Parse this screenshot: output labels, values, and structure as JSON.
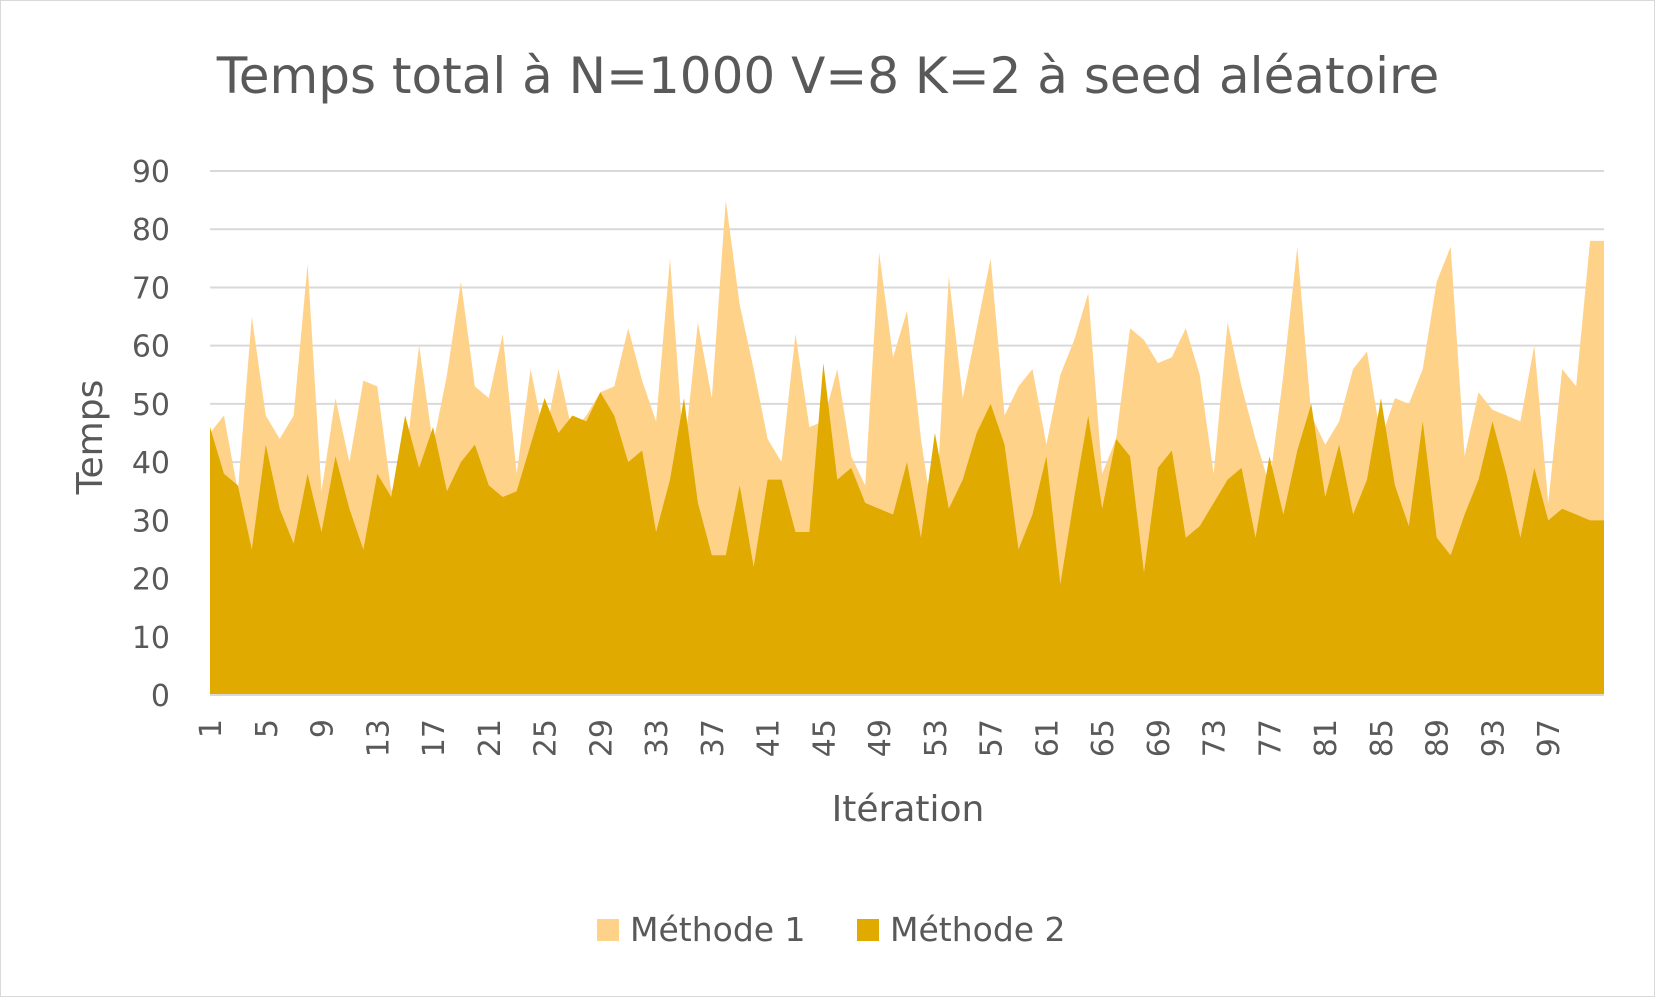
{
  "chart_data": {
    "type": "area",
    "title": "Temps total à N=1000 V=8 K=2 à seed aléatoire",
    "xlabel": "Itération",
    "ylabel": "Temps",
    "ylim": [
      0,
      90
    ],
    "y_ticks": [
      "0",
      "10",
      "20",
      "30",
      "40",
      "50",
      "60",
      "70",
      "80",
      "90"
    ],
    "x_tick_labels": [
      "1",
      "5",
      "9",
      "13",
      "17",
      "21",
      "25",
      "29",
      "33",
      "37",
      "41",
      "45",
      "49",
      "53",
      "57",
      "61",
      "65",
      "69",
      "73",
      "77",
      "81",
      "85",
      "89",
      "93",
      "97"
    ],
    "x": [
      1,
      2,
      3,
      4,
      5,
      6,
      7,
      8,
      9,
      10,
      11,
      12,
      13,
      14,
      15,
      16,
      17,
      18,
      19,
      20,
      21,
      22,
      23,
      24,
      25,
      26,
      27,
      28,
      29,
      30,
      31,
      32,
      33,
      34,
      35,
      36,
      37,
      38,
      39,
      40,
      41,
      42,
      43,
      44,
      45,
      46,
      47,
      48,
      49,
      50,
      51,
      52,
      53,
      54,
      55,
      56,
      57,
      58,
      59,
      60,
      61,
      62,
      63,
      64,
      65,
      66,
      67,
      68,
      69,
      70,
      71,
      72,
      73,
      74,
      75,
      76,
      77,
      78,
      79,
      80,
      81,
      82,
      83,
      84,
      85,
      86,
      87,
      88,
      89,
      90,
      91,
      92,
      93,
      94,
      95,
      96,
      97,
      98,
      99,
      100,
      101
    ],
    "grid": true,
    "legend_position": "bottom",
    "series": [
      {
        "name": "Méthode 1",
        "color": "#ffd28a",
        "values": [
          45,
          48,
          35,
          65,
          48,
          44,
          48,
          74,
          35,
          51,
          40,
          54,
          53,
          35,
          40,
          60,
          43,
          55,
          71,
          53,
          51,
          62,
          38,
          56,
          44,
          56,
          45,
          48,
          52,
          53,
          63,
          54,
          47,
          75,
          41,
          64,
          51,
          85,
          67,
          56,
          44,
          40,
          62,
          46,
          47,
          56,
          41,
          36,
          76,
          58,
          66,
          44,
          28,
          72,
          51,
          63,
          75,
          48,
          53,
          56,
          43,
          55,
          61,
          69,
          38,
          44,
          63,
          61,
          57,
          58,
          63,
          55,
          38,
          64,
          53,
          44,
          36,
          55,
          77,
          48,
          43,
          47,
          56,
          59,
          44,
          51,
          50,
          56,
          71,
          77,
          41,
          52,
          49,
          48,
          47,
          60,
          33,
          56,
          53,
          78,
          78
        ]
      },
      {
        "name": "Méthode 2",
        "color": "#e0aa00",
        "values": [
          46,
          38,
          36,
          25,
          43,
          32,
          26,
          38,
          28,
          41,
          32,
          25,
          38,
          34,
          48,
          39,
          46,
          35,
          40,
          43,
          36,
          34,
          35,
          43,
          51,
          45,
          48,
          47,
          52,
          48,
          40,
          42,
          28,
          37,
          51,
          33,
          24,
          24,
          36,
          22,
          37,
          37,
          28,
          28,
          57,
          37,
          39,
          33,
          32,
          31,
          40,
          27,
          45,
          32,
          37,
          45,
          50,
          43,
          25,
          31,
          41,
          19,
          34,
          48,
          32,
          44,
          41,
          21,
          39,
          42,
          27,
          29,
          33,
          37,
          39,
          27,
          41,
          31,
          42,
          50,
          34,
          43,
          31,
          37,
          51,
          36,
          29,
          47,
          27,
          24,
          31,
          37,
          47,
          38,
          27,
          39,
          30,
          32,
          31,
          30,
          30
        ]
      }
    ]
  }
}
